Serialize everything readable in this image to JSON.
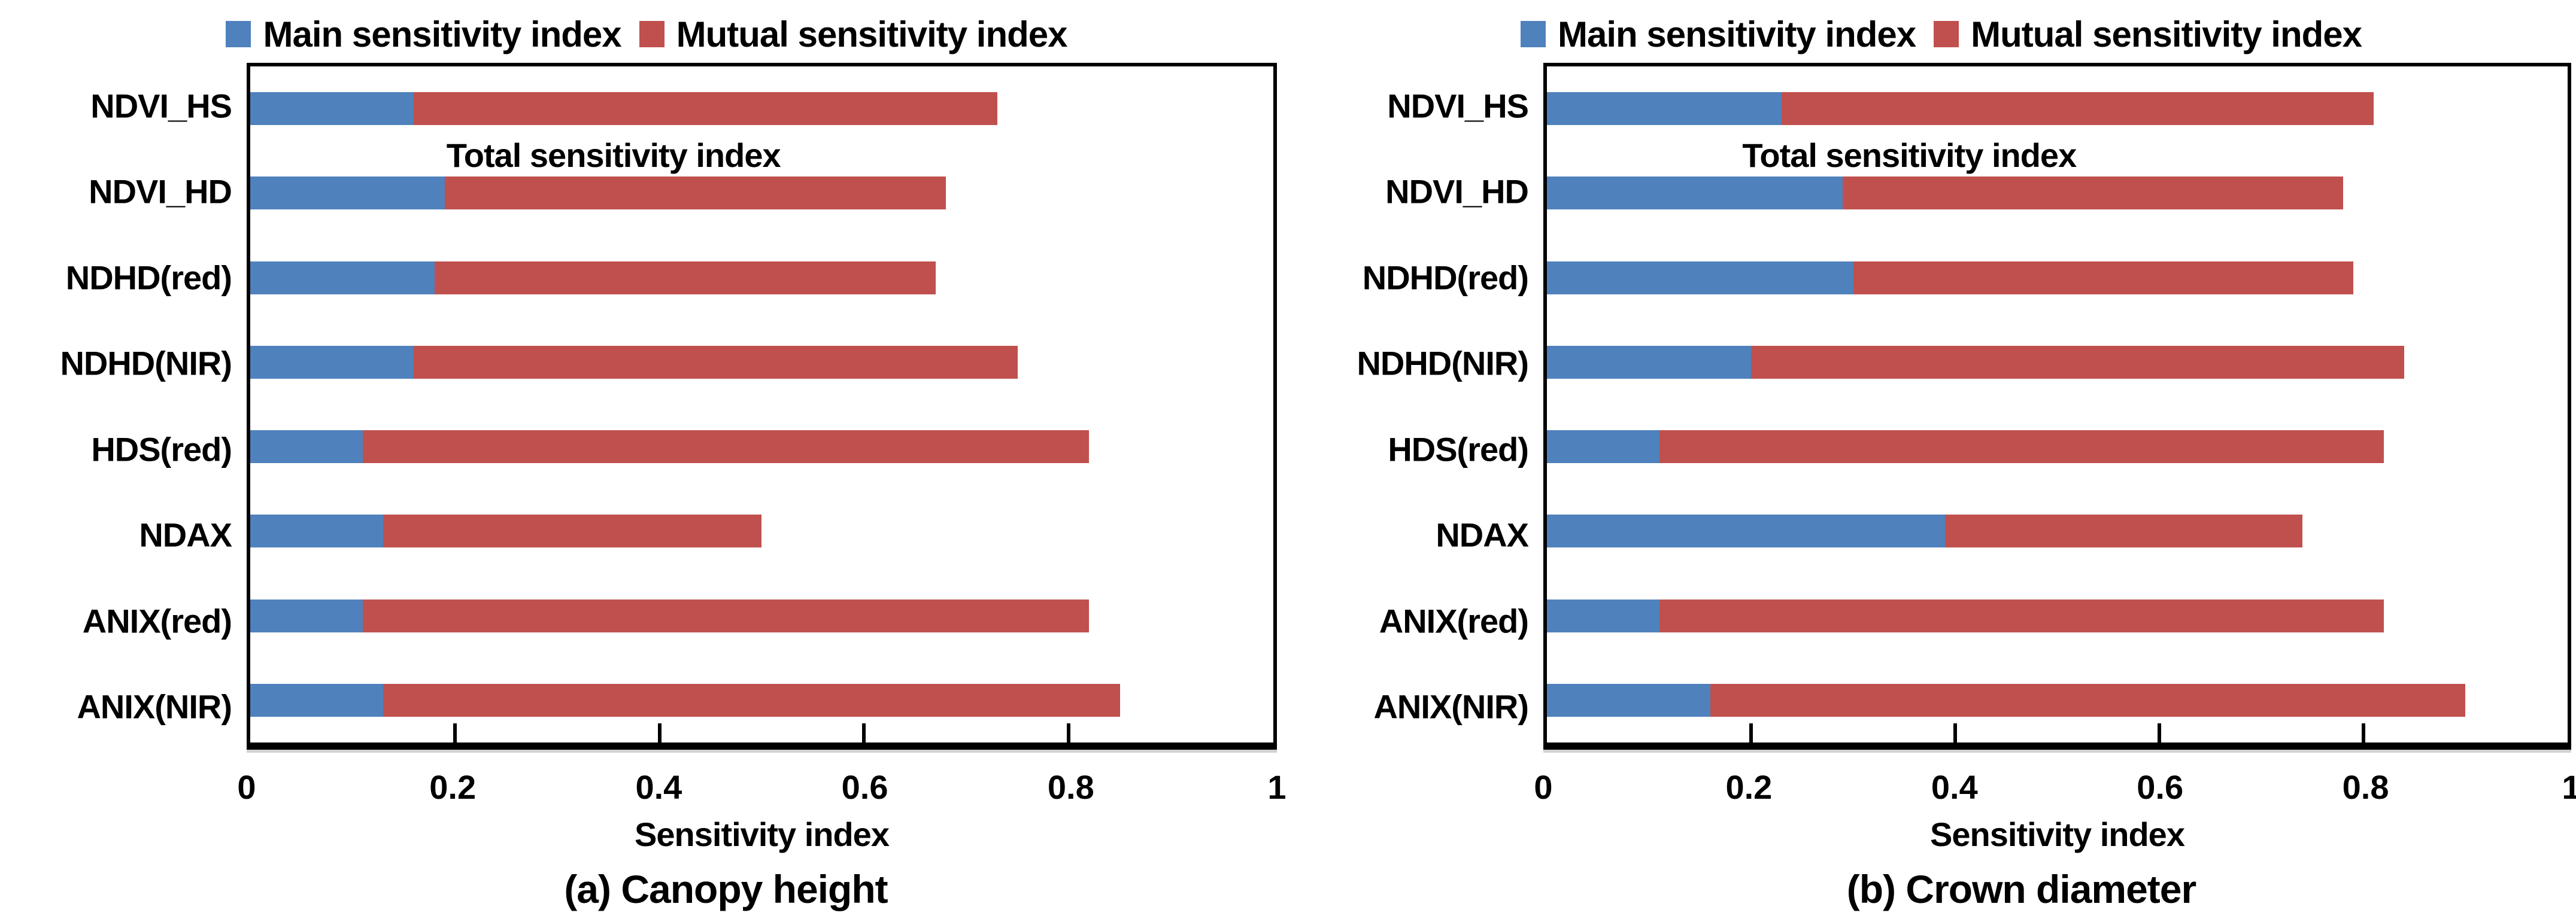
{
  "figure": {
    "colors": {
      "main": "#4F81BD",
      "mutual": "#C0504D",
      "axis": "#000000",
      "text": "#000000",
      "background": "#FFFFFF"
    }
  },
  "chart_data": [
    {
      "type": "bar",
      "orientation": "horizontal",
      "stacked": true,
      "panel_label": "(a) Canopy height",
      "inner_title": "Total sensitivity index",
      "xlabel": "Sensitivity index",
      "xlim": [
        0,
        1
      ],
      "xtick_values": [
        0,
        0.2,
        0.4,
        0.6,
        0.8,
        1
      ],
      "xtick_labels": [
        "0",
        "0.2",
        "0.4",
        "0.6",
        "0.8",
        "1"
      ],
      "grid": false,
      "legend_position": "top",
      "categories": [
        "NDVI_HS",
        "NDVI_HD",
        "NDHD(red)",
        "NDHD(NIR)",
        "HDS(red)",
        "NDAX",
        "ANIX(red)",
        "ANIX(NIR)"
      ],
      "series": [
        {
          "name": "Main sensitivity index",
          "values": [
            0.16,
            0.19,
            0.18,
            0.16,
            0.11,
            0.13,
            0.11,
            0.13
          ]
        },
        {
          "name": "Mutual sensitivity index",
          "values": [
            0.57,
            0.49,
            0.49,
            0.59,
            0.71,
            0.37,
            0.71,
            0.72
          ]
        }
      ],
      "total_sensitivity_index": [
        0.73,
        0.68,
        0.67,
        0.75,
        0.82,
        0.5,
        0.82,
        0.85
      ]
    },
    {
      "type": "bar",
      "orientation": "horizontal",
      "stacked": true,
      "panel_label": "(b) Crown diameter",
      "inner_title": "Total sensitivity index",
      "xlabel": "Sensitivity index",
      "xlim": [
        0,
        1
      ],
      "xtick_values": [
        0,
        0.2,
        0.4,
        0.6,
        0.8,
        1
      ],
      "xtick_labels": [
        "0",
        "0.2",
        "0.4",
        "0.6",
        "0.8",
        "1"
      ],
      "grid": false,
      "legend_position": "top",
      "categories": [
        "NDVI_HS",
        "NDVI_HD",
        "NDHD(red)",
        "NDHD(NIR)",
        "HDS(red)",
        "NDAX",
        "ANIX(red)",
        "ANIX(NIR)"
      ],
      "series": [
        {
          "name": "Main sensitivity index",
          "values": [
            0.23,
            0.29,
            0.3,
            0.2,
            0.11,
            0.39,
            0.11,
            0.16
          ]
        },
        {
          "name": "Mutual sensitivity index",
          "values": [
            0.58,
            0.49,
            0.49,
            0.64,
            0.71,
            0.35,
            0.71,
            0.74
          ]
        }
      ],
      "total_sensitivity_index": [
        0.81,
        0.78,
        0.79,
        0.84,
        0.82,
        0.74,
        0.82,
        0.9
      ]
    }
  ]
}
